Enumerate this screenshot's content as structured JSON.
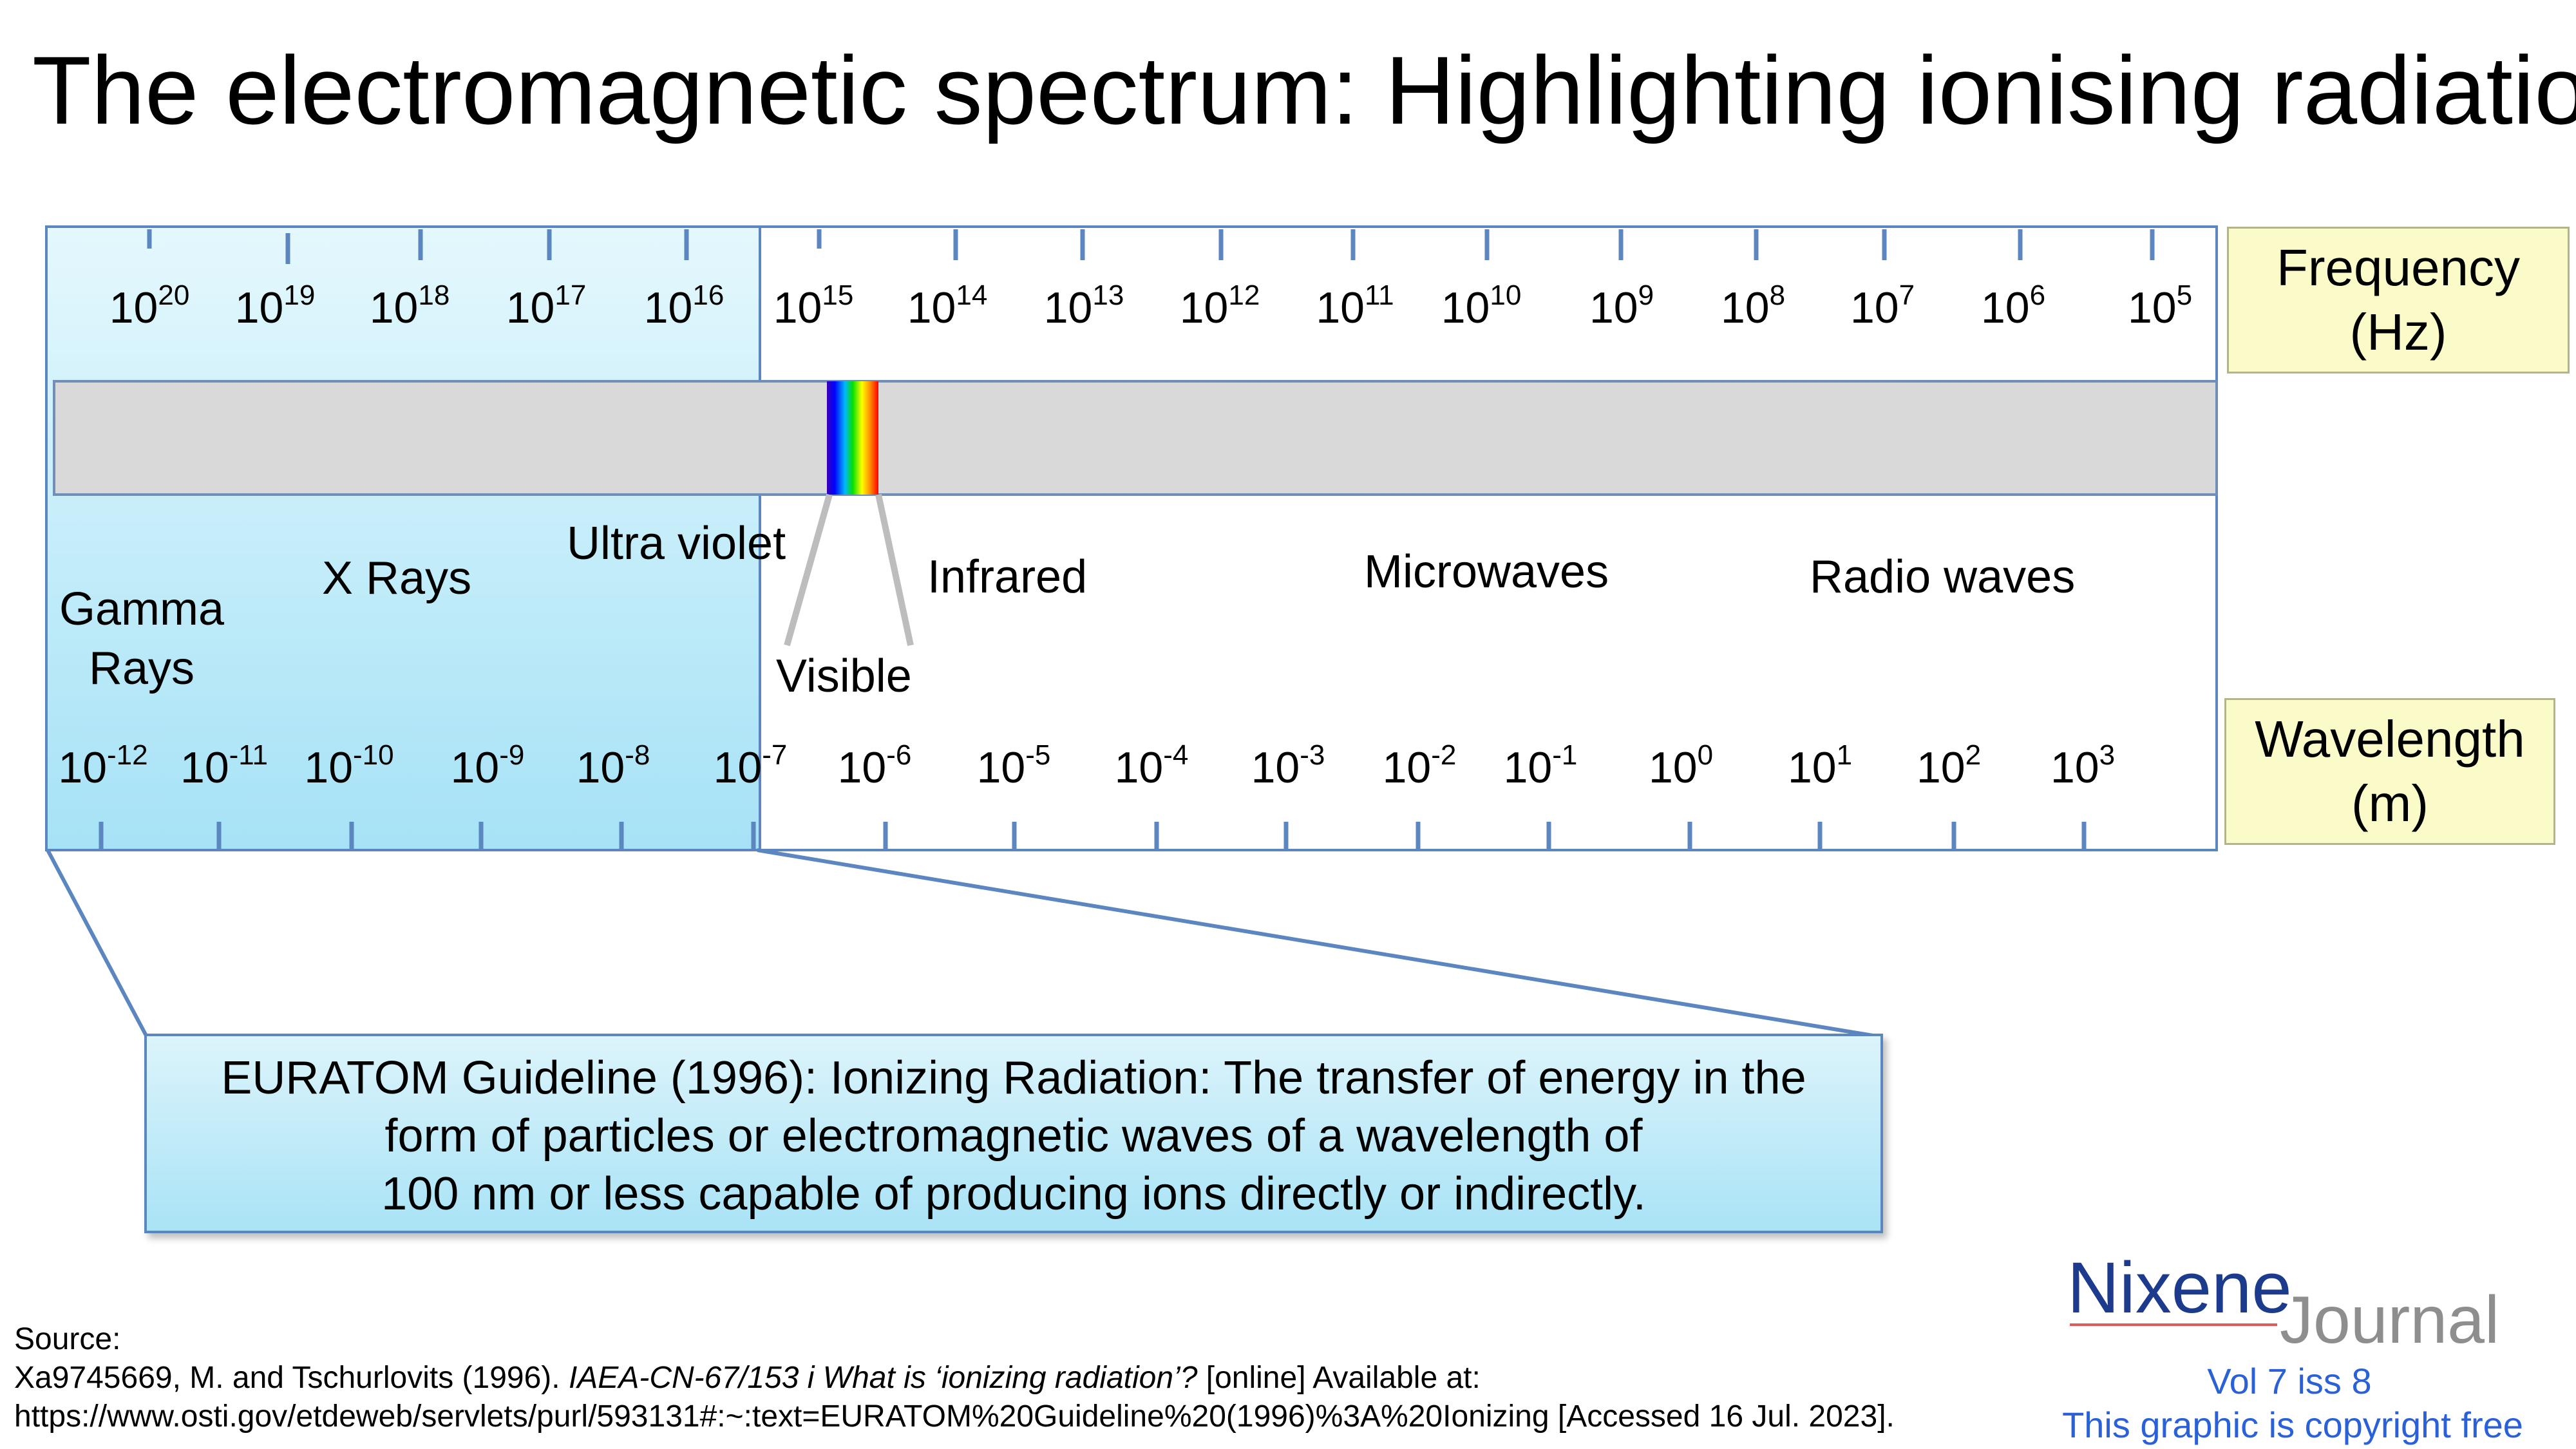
{
  "title": "The electromagnetic spectrum: Highlighting ionising radiation",
  "frequency_axis": {
    "label_line1": "Frequency",
    "label_line2": "(Hz)",
    "ticks": [
      {
        "base": "10",
        "exp": "20"
      },
      {
        "base": "10",
        "exp": "19"
      },
      {
        "base": "10",
        "exp": "18"
      },
      {
        "base": "10",
        "exp": "17"
      },
      {
        "base": "10",
        "exp": "16"
      },
      {
        "base": "10",
        "exp": "15"
      },
      {
        "base": "10",
        "exp": "14"
      },
      {
        "base": "10",
        "exp": "13"
      },
      {
        "base": "10",
        "exp": "12"
      },
      {
        "base": "10",
        "exp": "11"
      },
      {
        "base": "10",
        "exp": "10"
      },
      {
        "base": "10",
        "exp": "9"
      },
      {
        "base": "10",
        "exp": "8"
      },
      {
        "base": "10",
        "exp": "7"
      },
      {
        "base": "10",
        "exp": "6"
      },
      {
        "base": "10",
        "exp": "5"
      }
    ]
  },
  "wavelength_axis": {
    "label_line1": "Wavelength",
    "label_line2": "(m)",
    "ticks": [
      {
        "base": "10",
        "exp": "-12"
      },
      {
        "base": "10",
        "exp": "-11"
      },
      {
        "base": "10",
        "exp": "-10"
      },
      {
        "base": "10",
        "exp": "-9"
      },
      {
        "base": "10",
        "exp": "-8"
      },
      {
        "base": "10",
        "exp": "-7"
      },
      {
        "base": "10",
        "exp": "-6"
      },
      {
        "base": "10",
        "exp": "-5"
      },
      {
        "base": "10",
        "exp": "-4"
      },
      {
        "base": "10",
        "exp": "-3"
      },
      {
        "base": "10",
        "exp": "-2"
      },
      {
        "base": "10",
        "exp": "-1"
      },
      {
        "base": "10",
        "exp": "0"
      },
      {
        "base": "10",
        "exp": "1"
      },
      {
        "base": "10",
        "exp": "2"
      },
      {
        "base": "10",
        "exp": "3"
      }
    ]
  },
  "regions": {
    "gamma_line1": "Gamma",
    "gamma_line2": "Rays",
    "xrays": "X Rays",
    "ultraviolet": "Ultra violet",
    "visible": "Visible",
    "infrared": "Infrared",
    "microwaves": "Microwaves",
    "radio": "Radio waves"
  },
  "callout": {
    "line1": "EURATOM Guideline (1996): Ionizing Radiation: The transfer of energy in the",
    "line2": "form of particles or electromagnetic waves of a wavelength of",
    "line3": "100 nm or less  capable of producing ions directly or indirectly."
  },
  "source": {
    "heading": "Source:",
    "line1_plain": "Xa9745669, M. and Tschurlovits (1996). ",
    "line1_italic": "IAEA-CN-67/153 i What is ‘ionizing radiation’?",
    "line1_rest": " [online] Available at:",
    "line2": "https://www.osti.gov/etdeweb/servlets/purl/593131#:~:text=EURATOM%20Guideline%20(1996)%3A%20Ionizing [Accessed 16 Jul. 2023]."
  },
  "brand": {
    "name": "Nixene",
    "journal": "Journal",
    "volume": "Vol 7 iss 8",
    "copyright": "This graphic is copyright free"
  },
  "colors": {
    "ionising_fill_top": "#e4f8fd",
    "ionising_fill_bottom": "#a6e2f6",
    "frame_stroke": "#5b86c0",
    "spectrum_bar": "#d9d9d9",
    "axis_label_bg": "#fbfbc9",
    "brand_blue": "#2a60d8"
  }
}
